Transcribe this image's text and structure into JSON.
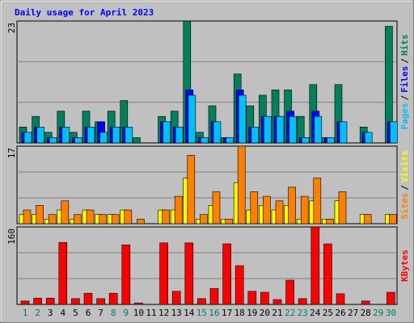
{
  "legend_separator": "/",
  "chart_data": [
    {
      "type": "bar",
      "title": "Daily usage for April 2023",
      "ylim": [
        0,
        23
      ],
      "yticks": [
        23
      ],
      "series": [
        {
          "name": "Hits",
          "color": "#00805c",
          "values": [
            3,
            5,
            2,
            6,
            2,
            6,
            4,
            6,
            8,
            1,
            0,
            5,
            6,
            23,
            2,
            7,
            1,
            13,
            7,
            9,
            10,
            10,
            5,
            11,
            1,
            11,
            0,
            3,
            0,
            22
          ]
        },
        {
          "name": "Files",
          "color": "#0000ff",
          "values": [
            2,
            3,
            1,
            3,
            1,
            3,
            4,
            3,
            3,
            0,
            0,
            4,
            3,
            10,
            1,
            4,
            1,
            10,
            3,
            5,
            5,
            6,
            1,
            6,
            1,
            4,
            0,
            2,
            0,
            4
          ]
        },
        {
          "name": "Pages",
          "color": "#00c0ff",
          "values": [
            2,
            3,
            1,
            3,
            1,
            3,
            2,
            3,
            3,
            0,
            0,
            4,
            3,
            9,
            1,
            4,
            1,
            9,
            3,
            5,
            5,
            5,
            1,
            5,
            1,
            4,
            0,
            2,
            0,
            4
          ]
        }
      ]
    },
    {
      "type": "bar",
      "ylim": [
        0,
        17
      ],
      "yticks": [
        17
      ],
      "series": [
        {
          "name": "Visits",
          "color": "#ffff00",
          "values": [
            2,
            2,
            1,
            3,
            1,
            3,
            2,
            2,
            3,
            0,
            0,
            3,
            3,
            10,
            1,
            4,
            1,
            9,
            3,
            4,
            3,
            4,
            1,
            5,
            1,
            5,
            0,
            2,
            0,
            2
          ]
        },
        {
          "name": "Sites",
          "color": "#ff8000",
          "values": [
            3,
            4,
            2,
            5,
            2,
            3,
            2,
            2,
            3,
            1,
            0,
            3,
            6,
            15,
            2,
            7,
            1,
            17,
            7,
            6,
            5,
            8,
            6,
            10,
            1,
            7,
            0,
            2,
            0,
            2
          ]
        }
      ]
    },
    {
      "type": "bar",
      "ylim": [
        0,
        160
      ],
      "yticks": [
        160
      ],
      "categories": [
        "1",
        "2",
        "3",
        "4",
        "5",
        "6",
        "7",
        "8",
        "9",
        "10",
        "11",
        "12",
        "13",
        "14",
        "15",
        "16",
        "17",
        "18",
        "19",
        "20",
        "21",
        "22",
        "23",
        "24",
        "25",
        "26",
        "27",
        "28",
        "29",
        "30"
      ],
      "category_colors": [
        "#00805c",
        "#00805c",
        "#000000",
        "#000000",
        "#000000",
        "#000000",
        "#000000",
        "#00805c",
        "#00805c",
        "#000000",
        "#000000",
        "#000000",
        "#000000",
        "#000000",
        "#00805c",
        "#00805c",
        "#000000",
        "#000000",
        "#000000",
        "#000000",
        "#000000",
        "#00805c",
        "#00805c",
        "#000000",
        "#000000",
        "#000000",
        "#000000",
        "#000000",
        "#00805c",
        "#00805c"
      ],
      "series": [
        {
          "name": "KBytes",
          "color": "#ff0000",
          "values": [
            7,
            13,
            13,
            128,
            12,
            23,
            12,
            23,
            123,
            3,
            0,
            127,
            27,
            127,
            12,
            33,
            125,
            80,
            27,
            25,
            10,
            50,
            12,
            160,
            125,
            22,
            0,
            7,
            0,
            25
          ]
        }
      ]
    }
  ]
}
